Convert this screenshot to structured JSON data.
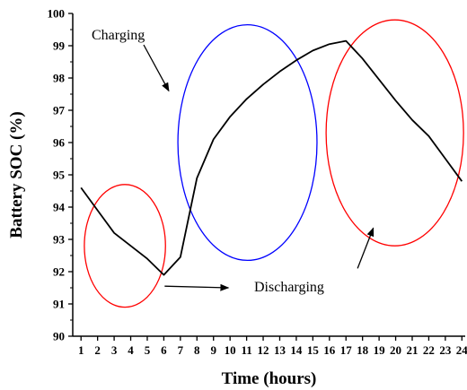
{
  "chart_data": {
    "type": "line",
    "xlabel": "Time (hours)",
    "ylabel": "Battery SOC (%)",
    "xlim": [
      0.5,
      24.2
    ],
    "ylim": [
      90,
      100
    ],
    "xticks": [
      1,
      2,
      3,
      4,
      5,
      6,
      7,
      8,
      9,
      10,
      11,
      12,
      13,
      14,
      15,
      16,
      17,
      18,
      19,
      20,
      21,
      22,
      23,
      24
    ],
    "yticks": [
      90,
      91,
      92,
      93,
      94,
      95,
      96,
      97,
      98,
      99,
      100
    ],
    "grid": false,
    "series": [
      {
        "color": "#000000",
        "x": [
          1,
          2,
          3,
          4,
          5,
          6,
          7,
          8,
          9,
          10,
          11,
          12,
          13,
          14,
          15,
          16,
          17,
          18,
          19,
          20,
          21,
          22,
          23,
          24
        ],
        "y": [
          94.6,
          93.9,
          93.2,
          92.8,
          92.4,
          91.9,
          92.45,
          94.9,
          96.1,
          96.8,
          97.35,
          97.8,
          98.2,
          98.55,
          98.85,
          99.05,
          99.15,
          98.6,
          97.95,
          97.3,
          96.7,
          96.2,
          95.5,
          94.8
        ]
      }
    ],
    "annotations": [
      {
        "text": "Charging",
        "target": [
          6.3,
          97.6
        ]
      },
      {
        "text": "Discharging",
        "target": [
          9.9,
          91.5
        ]
      }
    ],
    "ellipses": [
      {
        "cx": 3.65,
        "cy": 92.8,
        "rx": 2.45,
        "ry": 1.9,
        "color": "#ff0000"
      },
      {
        "cx": 11.05,
        "cy": 96.0,
        "rx": 4.2,
        "ry": 3.65,
        "color": "#0000ff"
      },
      {
        "cx": 19.95,
        "cy": 96.3,
        "rx": 4.15,
        "ry": 3.5,
        "color": "#ff0000"
      }
    ],
    "extra_arrows": [
      {
        "from": [
          17.7,
          92.1
        ],
        "to": [
          18.65,
          93.35
        ]
      }
    ]
  }
}
